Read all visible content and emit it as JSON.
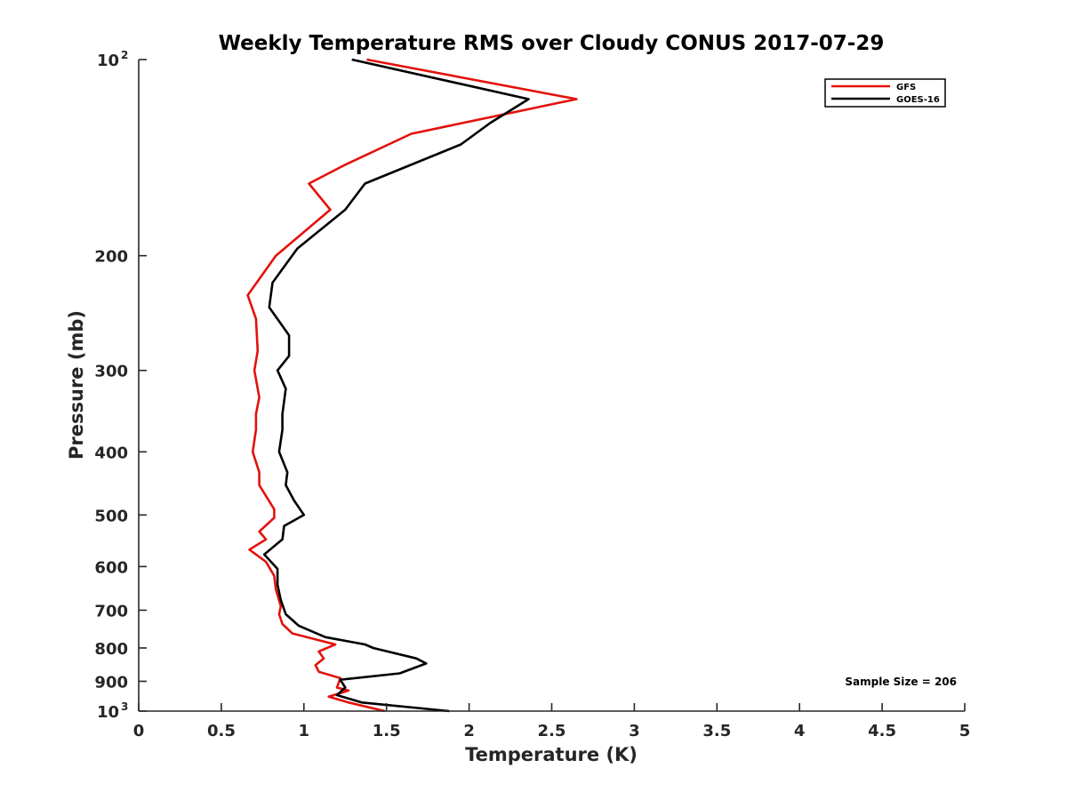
{
  "chart_data": {
    "type": "line",
    "title": "Weekly Temperature RMS over Cloudy CONUS 2017-07-29",
    "xlabel": "Temperature (K)",
    "ylabel": "Pressure (mb)",
    "xlim": [
      0,
      5
    ],
    "ylim": [
      100,
      1000
    ],
    "y_scale": "log",
    "y_reversed": true,
    "grid": false,
    "legend_position": "top-right",
    "x_ticks": [
      {
        "value": 0,
        "label": "0"
      },
      {
        "value": 0.5,
        "label": "0.5"
      },
      {
        "value": 1,
        "label": "1"
      },
      {
        "value": 1.5,
        "label": "1.5"
      },
      {
        "value": 2,
        "label": "2"
      },
      {
        "value": 2.5,
        "label": "2.5"
      },
      {
        "value": 3,
        "label": "3"
      },
      {
        "value": 3.5,
        "label": "3.5"
      },
      {
        "value": 4,
        "label": "4"
      },
      {
        "value": 4.5,
        "label": "4.5"
      },
      {
        "value": 5,
        "label": "5"
      }
    ],
    "y_ticks": [
      {
        "value": 100,
        "label": "10",
        "sup": "2"
      },
      {
        "value": 200,
        "label": "200"
      },
      {
        "value": 300,
        "label": "300"
      },
      {
        "value": 400,
        "label": "400"
      },
      {
        "value": 500,
        "label": "500"
      },
      {
        "value": 600,
        "label": "600"
      },
      {
        "value": 700,
        "label": "700"
      },
      {
        "value": 800,
        "label": "800"
      },
      {
        "value": 900,
        "label": "900"
      },
      {
        "value": 1000,
        "label": "10",
        "sup": "3"
      }
    ],
    "annotation": "Sample Size = 206",
    "series": [
      {
        "name": "GFS",
        "color": "#e3120b",
        "points": [
          [
            1.38,
            100
          ],
          [
            2.65,
            115
          ],
          [
            1.65,
            130
          ],
          [
            1.25,
            145
          ],
          [
            1.03,
            155
          ],
          [
            1.16,
            170
          ],
          [
            0.83,
            200
          ],
          [
            0.66,
            230
          ],
          [
            0.71,
            250
          ],
          [
            0.72,
            280
          ],
          [
            0.7,
            300
          ],
          [
            0.73,
            330
          ],
          [
            0.71,
            350
          ],
          [
            0.71,
            370
          ],
          [
            0.69,
            400
          ],
          [
            0.73,
            430
          ],
          [
            0.73,
            450
          ],
          [
            0.82,
            490
          ],
          [
            0.82,
            505
          ],
          [
            0.73,
            530
          ],
          [
            0.77,
            545
          ],
          [
            0.67,
            565
          ],
          [
            0.77,
            590
          ],
          [
            0.82,
            620
          ],
          [
            0.83,
            650
          ],
          [
            0.86,
            690
          ],
          [
            0.85,
            710
          ],
          [
            0.87,
            735
          ],
          [
            0.93,
            760
          ],
          [
            1.19,
            790
          ],
          [
            1.09,
            810
          ],
          [
            1.12,
            830
          ],
          [
            1.07,
            850
          ],
          [
            1.09,
            870
          ],
          [
            1.22,
            890
          ],
          [
            1.2,
            920
          ],
          [
            1.27,
            930
          ],
          [
            1.15,
            950
          ],
          [
            1.27,
            970
          ],
          [
            1.49,
            1000
          ]
        ]
      },
      {
        "name": "GOES-16",
        "color": "#000000",
        "points": [
          [
            1.29,
            100
          ],
          [
            2.36,
            115
          ],
          [
            2.13,
            125
          ],
          [
            1.95,
            135
          ],
          [
            1.37,
            155
          ],
          [
            1.25,
            170
          ],
          [
            0.96,
            195
          ],
          [
            0.81,
            220
          ],
          [
            0.79,
            240
          ],
          [
            0.91,
            265
          ],
          [
            0.91,
            285
          ],
          [
            0.84,
            300
          ],
          [
            0.89,
            320
          ],
          [
            0.87,
            350
          ],
          [
            0.87,
            370
          ],
          [
            0.85,
            400
          ],
          [
            0.9,
            430
          ],
          [
            0.89,
            450
          ],
          [
            0.94,
            475
          ],
          [
            1.0,
            500
          ],
          [
            0.88,
            520
          ],
          [
            0.87,
            545
          ],
          [
            0.76,
            575
          ],
          [
            0.84,
            605
          ],
          [
            0.84,
            640
          ],
          [
            0.86,
            675
          ],
          [
            0.89,
            710
          ],
          [
            0.97,
            740
          ],
          [
            1.13,
            770
          ],
          [
            1.37,
            790
          ],
          [
            1.42,
            800
          ],
          [
            1.68,
            830
          ],
          [
            1.74,
            845
          ],
          [
            1.58,
            875
          ],
          [
            1.22,
            895
          ],
          [
            1.25,
            920
          ],
          [
            1.2,
            945
          ],
          [
            1.35,
            970
          ],
          [
            1.88,
            1000
          ]
        ]
      }
    ]
  }
}
